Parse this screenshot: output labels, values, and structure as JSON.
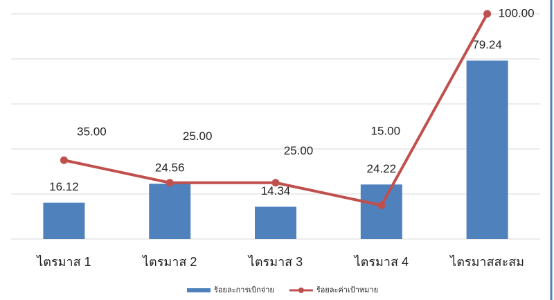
{
  "chart_data": {
    "type": "bar",
    "categories": [
      "ไตรมาส 1",
      "ไตรมาส 2",
      "ไตรมาส 3",
      "ไตรมาส 4",
      "ไตรมาสสะสม"
    ],
    "series": [
      {
        "name": "ร้อยละการเบิกจ่าย",
        "type": "bar",
        "color": "#4f81bd",
        "values": [
          16.12,
          24.56,
          14.34,
          24.22,
          79.24
        ]
      },
      {
        "name": "ร้อยละค่าเป้าหมาย",
        "type": "line",
        "color": "#c0504d",
        "values": [
          35,
          25,
          25,
          15,
          100
        ],
        "value_labels": [
          "35.00",
          "25.00",
          "25.00",
          "15.00",
          "100.00"
        ]
      }
    ],
    "ylim": [
      0,
      100
    ],
    "yticks": [
      0,
      20,
      40,
      60,
      80,
      100
    ],
    "grid": true,
    "legend": "bottom"
  }
}
